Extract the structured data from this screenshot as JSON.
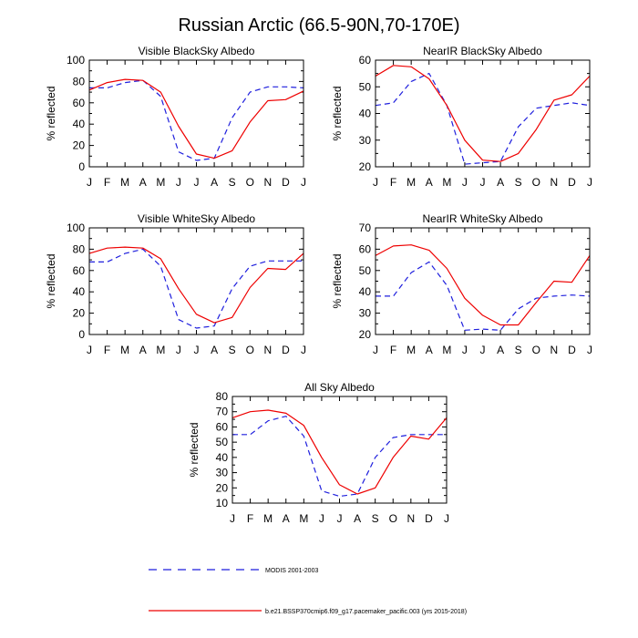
{
  "page_title": "Russian Arctic (66.5-90N,70-170E)",
  "legend": [
    {
      "label": "MODIS 2001-2003",
      "color": "#1f1fdd",
      "dash": "dashed"
    },
    {
      "label": "b.e21.BSSP370cmip6.f09_g17.pacemaker_pacific.003 (yrs 2015-2018)",
      "color": "#ee0000",
      "dash": "solid"
    }
  ],
  "chart_data": [
    {
      "type": "line",
      "title": "Visible BlackSky Albedo",
      "xlabel": "",
      "ylabel": "% reflected",
      "categories": [
        "J",
        "F",
        "M",
        "A",
        "M",
        "J",
        "J",
        "A",
        "S",
        "O",
        "N",
        "D",
        "J"
      ],
      "ylim": [
        0,
        100
      ],
      "yticks": [
        0,
        20,
        40,
        60,
        80,
        100
      ],
      "series": [
        {
          "name": "MODIS 2001-2003",
          "color": "#1f1fdd",
          "dash": "dashed",
          "values": [
            74,
            74,
            79,
            81,
            66,
            14,
            6,
            8,
            46,
            70,
            75,
            75,
            74
          ]
        },
        {
          "name": "b.e21.BSSP370cmip6.f09_g17.pacemaker_pacific.003 (yrs 2015-2018)",
          "color": "#ee0000",
          "dash": "solid",
          "values": [
            72,
            79,
            82,
            81,
            70,
            38,
            12,
            8,
            15,
            42,
            62,
            63,
            71
          ]
        }
      ]
    },
    {
      "type": "line",
      "title": "NearIR BlackSky Albedo",
      "xlabel": "",
      "ylabel": "% reflected",
      "categories": [
        "J",
        "F",
        "M",
        "A",
        "M",
        "J",
        "J",
        "A",
        "S",
        "O",
        "N",
        "D",
        "J"
      ],
      "ylim": [
        20,
        60
      ],
      "yticks": [
        20,
        30,
        40,
        50,
        60
      ],
      "series": [
        {
          "name": "MODIS 2001-2003",
          "color": "#1f1fdd",
          "dash": "dashed",
          "values": [
            43,
            44,
            52,
            55,
            43,
            21,
            21.5,
            22,
            35,
            42,
            43,
            44,
            43
          ]
        },
        {
          "name": "b.e21.BSSP370cmip6.f09_g17.pacemaker_pacific.003 (yrs 2015-2018)",
          "color": "#ee0000",
          "dash": "solid",
          "values": [
            54,
            58,
            57.5,
            53,
            43,
            30,
            22.5,
            22,
            25,
            34,
            45,
            47,
            54
          ]
        }
      ]
    },
    {
      "type": "line",
      "title": "Visible WhiteSky Albedo",
      "xlabel": "",
      "ylabel": "% reflected",
      "categories": [
        "J",
        "F",
        "M",
        "A",
        "M",
        "J",
        "J",
        "A",
        "S",
        "O",
        "N",
        "D",
        "J"
      ],
      "ylim": [
        0,
        100
      ],
      "yticks": [
        0,
        20,
        40,
        60,
        80,
        100
      ],
      "series": [
        {
          "name": "MODIS 2001-2003",
          "color": "#1f1fdd",
          "dash": "dashed",
          "values": [
            68,
            68,
            76,
            80,
            64,
            14,
            6,
            8,
            43,
            64,
            69,
            69,
            69
          ]
        },
        {
          "name": "b.e21.BSSP370cmip6.f09_g17.pacemaker_pacific.003 (yrs 2015-2018)",
          "color": "#ee0000",
          "dash": "solid",
          "values": [
            76,
            81,
            82,
            81,
            71,
            43,
            19,
            11,
            16,
            44,
            62,
            61,
            76
          ]
        }
      ]
    },
    {
      "type": "line",
      "title": "NearIR WhiteSky Albedo",
      "xlabel": "",
      "ylabel": "% reflected",
      "categories": [
        "J",
        "F",
        "M",
        "A",
        "M",
        "J",
        "J",
        "A",
        "S",
        "O",
        "N",
        "D",
        "J"
      ],
      "ylim": [
        20,
        70
      ],
      "yticks": [
        20,
        30,
        40,
        50,
        60,
        70
      ],
      "series": [
        {
          "name": "MODIS 2001-2003",
          "color": "#1f1fdd",
          "dash": "dashed",
          "values": [
            38,
            38,
            49,
            54,
            43,
            22,
            22.5,
            22,
            32,
            37,
            38,
            38.5,
            38
          ]
        },
        {
          "name": "b.e21.BSSP370cmip6.f09_g17.pacemaker_pacific.003 (yrs 2015-2018)",
          "color": "#ee0000",
          "dash": "solid",
          "values": [
            57,
            61.5,
            62,
            59.5,
            51,
            37,
            29,
            24.5,
            24.5,
            35,
            45,
            44.5,
            57
          ]
        }
      ]
    },
    {
      "type": "line",
      "title": "All Sky Albedo",
      "xlabel": "",
      "ylabel": "% reflected",
      "categories": [
        "J",
        "F",
        "M",
        "A",
        "M",
        "J",
        "J",
        "A",
        "S",
        "O",
        "N",
        "D",
        "J"
      ],
      "ylim": [
        10,
        80
      ],
      "yticks": [
        10,
        20,
        30,
        40,
        50,
        60,
        70,
        80
      ],
      "series": [
        {
          "name": "MODIS 2001-2003",
          "color": "#1f1fdd",
          "dash": "dashed",
          "values": [
            55,
            55,
            64,
            67,
            54,
            18,
            14.5,
            16,
            40,
            53,
            55,
            55,
            55
          ]
        },
        {
          "name": "b.e21.BSSP370cmip6.f09_g17.pacemaker_pacific.003 (yrs 2015-2018)",
          "color": "#ee0000",
          "dash": "solid",
          "values": [
            66,
            70,
            71,
            69,
            61,
            40,
            22,
            16,
            20,
            40,
            54,
            52,
            66
          ]
        }
      ]
    }
  ]
}
